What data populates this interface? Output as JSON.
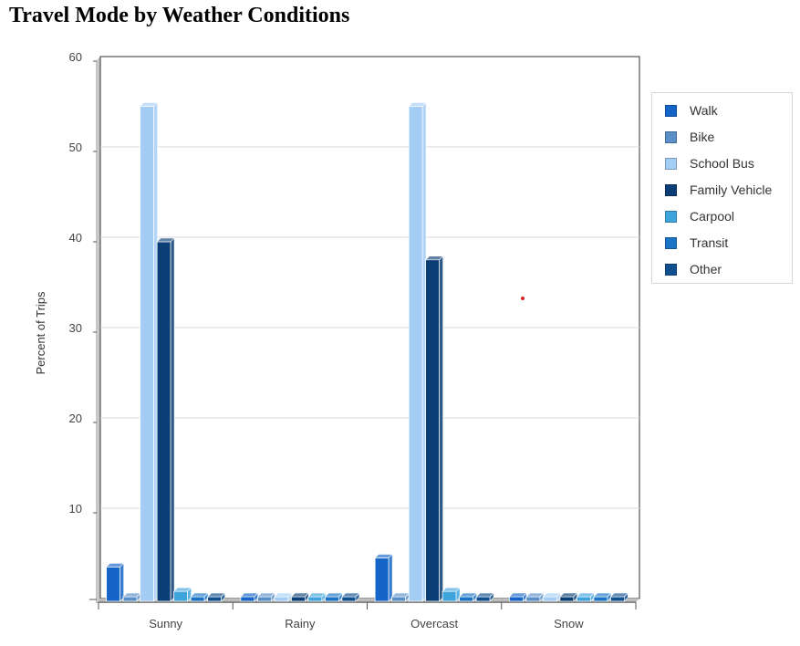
{
  "title": "Travel Mode by Weather Conditions",
  "chart_data": {
    "type": "bar",
    "title": "Travel Mode by Weather Conditions",
    "xlabel": "",
    "ylabel": "Percent of Trips",
    "ylim": [
      0,
      60
    ],
    "yticks": [
      10,
      20,
      30,
      40,
      50,
      60
    ],
    "grid": true,
    "legend_position": "right",
    "categories": [
      "Sunny",
      "Rainy",
      "Overcast",
      "Snow"
    ],
    "series": [
      {
        "name": "Walk",
        "color": "#1565c8",
        "values": [
          3.5,
          0,
          4.5,
          0
        ]
      },
      {
        "name": "Bike",
        "color": "#5b8fc7",
        "values": [
          0,
          0,
          0,
          0
        ]
      },
      {
        "name": "School Bus",
        "color": "#a4cdf5",
        "values": [
          54.5,
          0,
          54.5,
          0
        ]
      },
      {
        "name": "Family Vehicle",
        "color": "#0b3e74",
        "values": [
          39.5,
          0,
          37.5,
          0
        ]
      },
      {
        "name": "Carpool",
        "color": "#3fa4dc",
        "values": [
          0.8,
          0,
          0.8,
          0
        ]
      },
      {
        "name": "Transit",
        "color": "#1b74c5",
        "values": [
          0,
          0,
          0,
          0
        ]
      },
      {
        "name": "Other",
        "color": "#10508f",
        "values": [
          0,
          0,
          0,
          0
        ]
      }
    ]
  }
}
